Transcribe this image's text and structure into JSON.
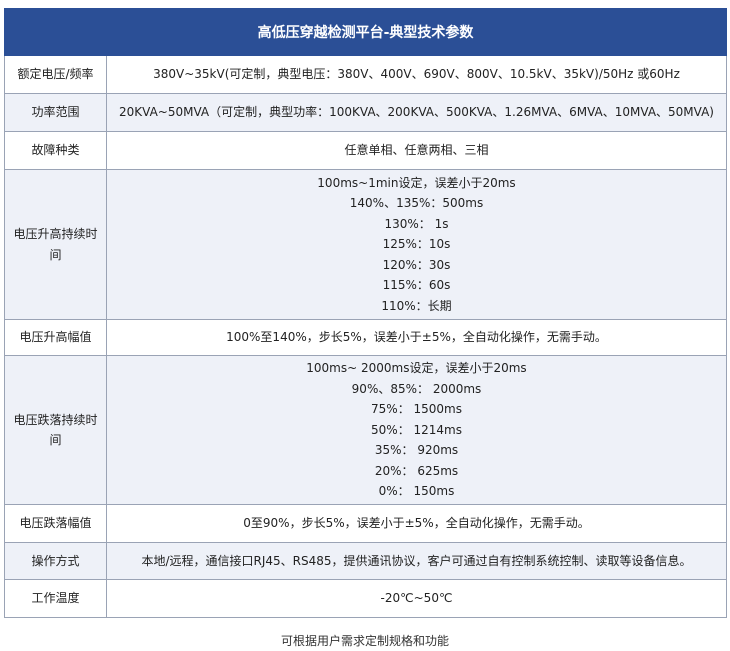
{
  "title": "高低压穿越检测平台-典型技术参数",
  "rows": [
    {
      "label": "额定电压/频率",
      "lines": [
        "380V~35kV(可定制，典型电压：380V、400V、690V、800V、10.5kV、35kV)/50Hz 或60Hz"
      ]
    },
    {
      "label": "功率范围",
      "lines": [
        "20KVA~50MVA（可定制，典型功率：100KVA、200KVA、500KVA、1.26MVA、6MVA、10MVA、50MVA)"
      ]
    },
    {
      "label": "故障种类",
      "lines": [
        "任意单相、任意两相、三相"
      ]
    },
    {
      "label": "电压升高持续时间",
      "lines": [
        "100ms~1min设定，误差小于20ms",
        "140%、135%：500ms",
        "130%： 1s",
        "125%：10s",
        "120%：30s",
        "115%：60s",
        "110%：长期"
      ]
    },
    {
      "label": "电压升高幅值",
      "lines": [
        "100%至140%，步长5%，误差小于±5%，全自动化操作，无需手动。"
      ]
    },
    {
      "label": "电压跌落持续时间",
      "lines": [
        "100ms~ 2000ms设定，误差小于20ms",
        "90%、85%： 2000ms",
        "75%： 1500ms",
        "50%： 1214ms",
        "35%： 920ms",
        "20%： 625ms",
        "0%： 150ms"
      ]
    },
    {
      "label": "电压跌落幅值",
      "lines": [
        "0至90%，步长5%，误差小于±5%，全自动化操作，无需手动。"
      ]
    },
    {
      "label": "操作方式",
      "lines": [
        "本地/远程，通信接口RJ45、RS485，提供通讯协议，客户可通过自有控制系统控制、读取等设备信息。"
      ]
    },
    {
      "label": "工作温度",
      "lines": [
        "-20℃~50℃"
      ]
    }
  ],
  "caption": "可根据用户需求定制规格和功能",
  "colors": {
    "header": "#2b4f96",
    "alt_row": "#eef1f8"
  }
}
